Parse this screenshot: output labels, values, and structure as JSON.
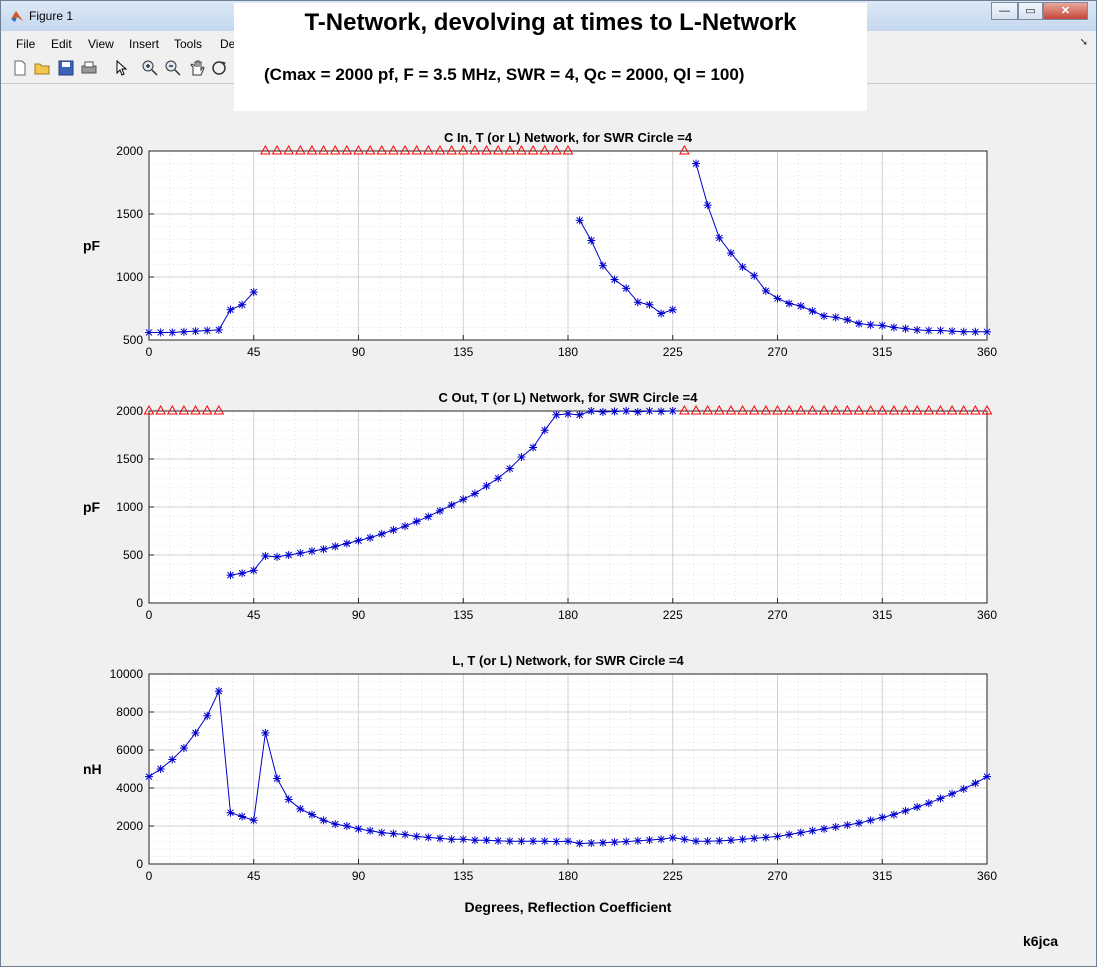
{
  "window": {
    "title": "Figure 1",
    "buttons": {
      "minimize": "—",
      "restore": "▭",
      "close": "✕"
    }
  },
  "menu": [
    "File",
    "Edit",
    "View",
    "Insert",
    "Tools",
    "De"
  ],
  "toolbar": [
    "new-file-icon",
    "open-folder-icon",
    "save-icon",
    "print-icon",
    "pointer-icon",
    "zoom-in-icon",
    "zoom-out-icon",
    "pan-hand-icon",
    "rotate-3d-icon"
  ],
  "figure": {
    "title": "T-Network, devolving at times to L-Network",
    "subtitle": "(Cmax = 2000 pf,  F = 3.5 MHz, SWR = 4, Qc = 2000, Ql = 100)",
    "credit": "k6jca"
  },
  "colors": {
    "line": "#0000cc",
    "limit_marker": "#ff0000",
    "grid": "#c8c8c8"
  },
  "chart_data": [
    {
      "type": "line",
      "title": "C In, T (or L) Network, for SWR Circle =4",
      "ylabel": "pF",
      "xlabel": "",
      "xlim": [
        0,
        360
      ],
      "ylim": [
        500,
        2000
      ],
      "xticks": [
        0,
        45,
        90,
        135,
        180,
        225,
        270,
        315,
        360
      ],
      "yticks": [
        500,
        1000,
        1500,
        2000
      ],
      "grid": true,
      "series": [
        {
          "marker": "asterisk",
          "color": "#0000cc",
          "points": [
            [
              0,
              560
            ],
            [
              5,
              560
            ],
            [
              10,
              560
            ],
            [
              15,
              565
            ],
            [
              20,
              570
            ],
            [
              25,
              575
            ],
            [
              30,
              580
            ],
            [
              35,
              740
            ],
            [
              40,
              780
            ],
            [
              45,
              880
            ]
          ]
        },
        {
          "marker": "asterisk",
          "color": "#0000cc",
          "points": [
            [
              185,
              1450
            ],
            [
              190,
              1290
            ],
            [
              195,
              1090
            ],
            [
              200,
              980
            ],
            [
              205,
              910
            ],
            [
              210,
              800
            ],
            [
              215,
              780
            ],
            [
              220,
              710
            ],
            [
              225,
              740
            ]
          ]
        },
        {
          "marker": "asterisk",
          "color": "#0000cc",
          "points": [
            [
              235,
              1900
            ],
            [
              240,
              1570
            ],
            [
              245,
              1310
            ],
            [
              250,
              1190
            ],
            [
              255,
              1080
            ],
            [
              260,
              1010
            ],
            [
              265,
              890
            ],
            [
              270,
              830
            ],
            [
              275,
              790
            ],
            [
              280,
              770
            ],
            [
              285,
              730
            ],
            [
              290,
              690
            ],
            [
              295,
              680
            ],
            [
              300,
              660
            ],
            [
              305,
              630
            ],
            [
              310,
              620
            ],
            [
              315,
              615
            ],
            [
              320,
              600
            ],
            [
              325,
              590
            ],
            [
              330,
              580
            ],
            [
              335,
              575
            ],
            [
              340,
              575
            ],
            [
              345,
              570
            ],
            [
              350,
              565
            ],
            [
              355,
              565
            ],
            [
              360,
              565
            ]
          ]
        },
        {
          "marker": "triangle",
          "color": "#ff0000",
          "line": false,
          "points": [
            [
              50,
              2000
            ],
            [
              55,
              2000
            ],
            [
              60,
              2000
            ],
            [
              65,
              2000
            ],
            [
              70,
              2000
            ],
            [
              75,
              2000
            ],
            [
              80,
              2000
            ],
            [
              85,
              2000
            ],
            [
              90,
              2000
            ],
            [
              95,
              2000
            ],
            [
              100,
              2000
            ],
            [
              105,
              2000
            ],
            [
              110,
              2000
            ],
            [
              115,
              2000
            ],
            [
              120,
              2000
            ],
            [
              125,
              2000
            ],
            [
              130,
              2000
            ],
            [
              135,
              2000
            ],
            [
              140,
              2000
            ],
            [
              145,
              2000
            ],
            [
              150,
              2000
            ],
            [
              155,
              2000
            ],
            [
              160,
              2000
            ],
            [
              165,
              2000
            ],
            [
              170,
              2000
            ],
            [
              175,
              2000
            ],
            [
              180,
              2000
            ],
            [
              230,
              2000
            ]
          ]
        }
      ]
    },
    {
      "type": "line",
      "title": "C Out, T (or L) Network, for SWR Circle =4",
      "ylabel": "pF",
      "xlabel": "",
      "xlim": [
        0,
        360
      ],
      "ylim": [
        0,
        2000
      ],
      "xticks": [
        0,
        45,
        90,
        135,
        180,
        225,
        270,
        315,
        360
      ],
      "yticks": [
        0,
        500,
        1000,
        1500,
        2000
      ],
      "grid": true,
      "series": [
        {
          "marker": "asterisk",
          "color": "#0000cc",
          "points": [
            [
              35,
              290
            ],
            [
              40,
              310
            ],
            [
              45,
              340
            ],
            [
              50,
              490
            ],
            [
              55,
              480
            ],
            [
              60,
              500
            ],
            [
              65,
              520
            ],
            [
              70,
              540
            ],
            [
              75,
              560
            ],
            [
              80,
              590
            ],
            [
              85,
              620
            ],
            [
              90,
              650
            ],
            [
              95,
              680
            ],
            [
              100,
              720
            ],
            [
              105,
              760
            ],
            [
              110,
              800
            ],
            [
              115,
              850
            ],
            [
              120,
              900
            ],
            [
              125,
              960
            ],
            [
              130,
              1020
            ],
            [
              135,
              1080
            ],
            [
              140,
              1140
            ],
            [
              145,
              1220
            ],
            [
              150,
              1300
            ],
            [
              155,
              1400
            ],
            [
              160,
              1520
            ],
            [
              165,
              1620
            ],
            [
              170,
              1800
            ],
            [
              175,
              1960
            ],
            [
              180,
              1970
            ],
            [
              185,
              1960
            ],
            [
              190,
              2000
            ],
            [
              195,
              1990
            ],
            [
              200,
              1995
            ],
            [
              205,
              2000
            ],
            [
              210,
              1990
            ],
            [
              215,
              2000
            ],
            [
              220,
              1995
            ],
            [
              225,
              2000
            ]
          ]
        },
        {
          "marker": "triangle",
          "color": "#ff0000",
          "line": false,
          "points": [
            [
              0,
              2000
            ],
            [
              5,
              2000
            ],
            [
              10,
              2000
            ],
            [
              15,
              2000
            ],
            [
              20,
              2000
            ],
            [
              25,
              2000
            ],
            [
              30,
              2000
            ],
            [
              230,
              2000
            ],
            [
              235,
              2000
            ],
            [
              240,
              2000
            ],
            [
              245,
              2000
            ],
            [
              250,
              2000
            ],
            [
              255,
              2000
            ],
            [
              260,
              2000
            ],
            [
              265,
              2000
            ],
            [
              270,
              2000
            ],
            [
              275,
              2000
            ],
            [
              280,
              2000
            ],
            [
              285,
              2000
            ],
            [
              290,
              2000
            ],
            [
              295,
              2000
            ],
            [
              300,
              2000
            ],
            [
              305,
              2000
            ],
            [
              310,
              2000
            ],
            [
              315,
              2000
            ],
            [
              320,
              2000
            ],
            [
              325,
              2000
            ],
            [
              330,
              2000
            ],
            [
              335,
              2000
            ],
            [
              340,
              2000
            ],
            [
              345,
              2000
            ],
            [
              350,
              2000
            ],
            [
              355,
              2000
            ],
            [
              360,
              2000
            ]
          ]
        }
      ]
    },
    {
      "type": "line",
      "title": "L, T (or L) Network, for SWR Circle =4",
      "ylabel": "nH",
      "xlabel": "Degrees, Reflection Coefficient",
      "xlim": [
        0,
        360
      ],
      "ylim": [
        0,
        10000
      ],
      "xticks": [
        0,
        45,
        90,
        135,
        180,
        225,
        270,
        315,
        360
      ],
      "yticks": [
        0,
        2000,
        4000,
        6000,
        8000,
        10000
      ],
      "grid": true,
      "series": [
        {
          "marker": "asterisk",
          "color": "#0000cc",
          "points": [
            [
              0,
              4600
            ],
            [
              5,
              5000
            ],
            [
              10,
              5500
            ],
            [
              15,
              6100
            ],
            [
              20,
              6900
            ],
            [
              25,
              7800
            ],
            [
              30,
              9100
            ],
            [
              35,
              2700
            ],
            [
              40,
              2500
            ],
            [
              45,
              2300
            ],
            [
              50,
              6900
            ],
            [
              55,
              4500
            ],
            [
              60,
              3400
            ],
            [
              65,
              2900
            ],
            [
              70,
              2600
            ],
            [
              75,
              2300
            ],
            [
              80,
              2100
            ],
            [
              85,
              2000
            ],
            [
              90,
              1850
            ],
            [
              95,
              1750
            ],
            [
              100,
              1650
            ],
            [
              105,
              1600
            ],
            [
              110,
              1550
            ],
            [
              115,
              1450
            ],
            [
              120,
              1400
            ],
            [
              125,
              1350
            ],
            [
              130,
              1300
            ],
            [
              135,
              1300
            ],
            [
              140,
              1250
            ],
            [
              145,
              1250
            ],
            [
              150,
              1220
            ],
            [
              155,
              1200
            ],
            [
              160,
              1200
            ],
            [
              165,
              1200
            ],
            [
              170,
              1200
            ],
            [
              175,
              1180
            ],
            [
              180,
              1200
            ],
            [
              185,
              1080
            ],
            [
              190,
              1100
            ],
            [
              195,
              1120
            ],
            [
              200,
              1150
            ],
            [
              205,
              1180
            ],
            [
              210,
              1220
            ],
            [
              215,
              1260
            ],
            [
              220,
              1300
            ],
            [
              225,
              1380
            ],
            [
              230,
              1300
            ],
            [
              235,
              1200
            ],
            [
              240,
              1200
            ],
            [
              245,
              1220
            ],
            [
              250,
              1250
            ],
            [
              255,
              1300
            ],
            [
              260,
              1350
            ],
            [
              265,
              1400
            ],
            [
              270,
              1450
            ],
            [
              275,
              1550
            ],
            [
              280,
              1650
            ],
            [
              285,
              1750
            ],
            [
              290,
              1850
            ],
            [
              295,
              1950
            ],
            [
              300,
              2050
            ],
            [
              305,
              2150
            ],
            [
              310,
              2300
            ],
            [
              315,
              2450
            ],
            [
              320,
              2600
            ],
            [
              325,
              2800
            ],
            [
              330,
              3000
            ],
            [
              335,
              3200
            ],
            [
              340,
              3450
            ],
            [
              345,
              3700
            ],
            [
              350,
              3950
            ],
            [
              355,
              4250
            ],
            [
              360,
              4600
            ]
          ]
        }
      ]
    }
  ]
}
